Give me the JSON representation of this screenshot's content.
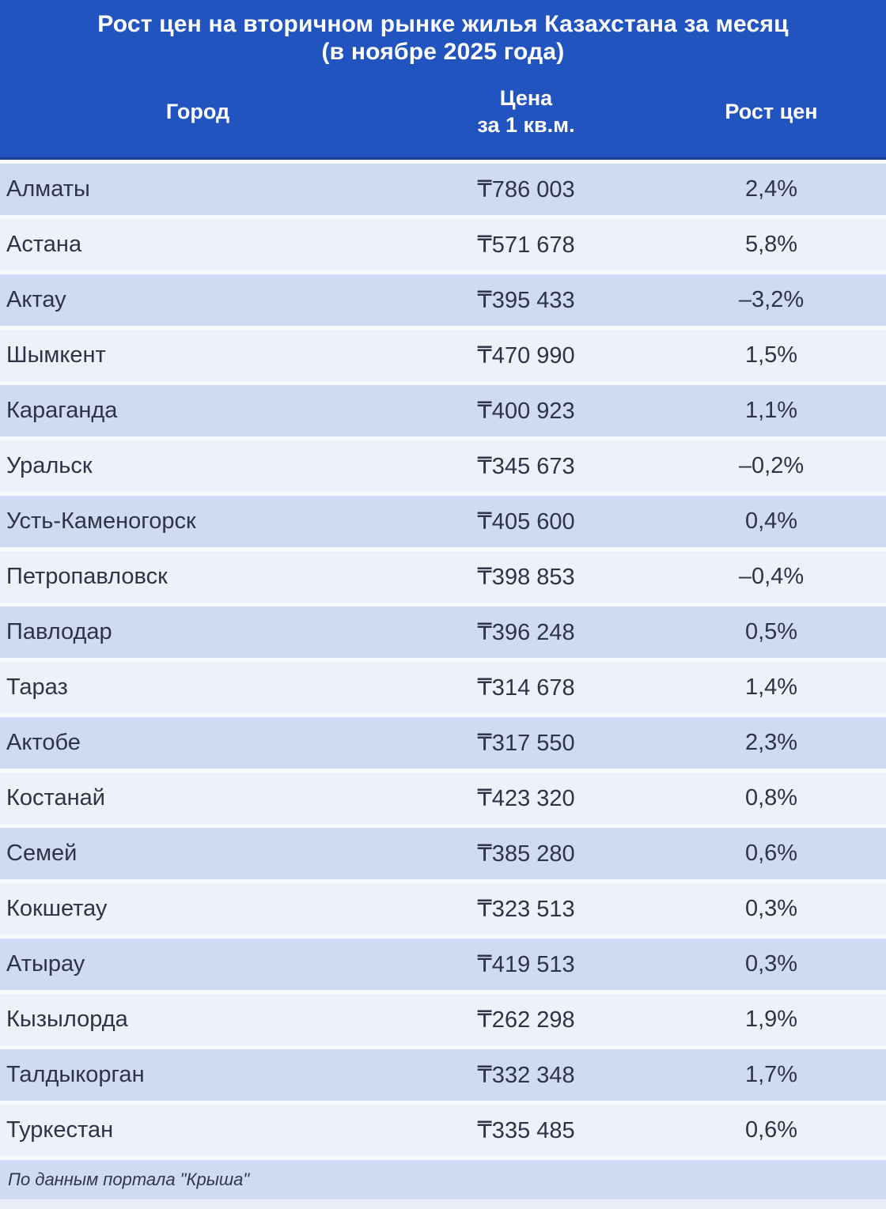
{
  "title": {
    "line1": "Рост цен на вторичном рынке жилья Казахстана за месяц",
    "line2": "(в ноябре 2025 года)"
  },
  "columns": {
    "city": "Город",
    "price_line1": "Цена",
    "price_line2": "за 1 кв.м.",
    "growth": "Рост цен"
  },
  "rows": [
    {
      "city": "Алматы",
      "price": "₸786 003",
      "growth": "2,4%"
    },
    {
      "city": "Астана",
      "price": "₸571 678",
      "growth": "5,8%"
    },
    {
      "city": "Актау",
      "price": "₸395 433",
      "growth": "–3,2%"
    },
    {
      "city": "Шымкент",
      "price": "₸470 990",
      "growth": "1,5%"
    },
    {
      "city": "Караганда",
      "price": "₸400 923",
      "growth": "1,1%"
    },
    {
      "city": "Уральск",
      "price": "₸345 673",
      "growth": "–0,2%"
    },
    {
      "city": "Усть-Каменогорск",
      "price": "₸405 600",
      "growth": "0,4%"
    },
    {
      "city": "Петропавловск",
      "price": "₸398 853",
      "growth": "–0,4%"
    },
    {
      "city": "Павлодар",
      "price": "₸396 248",
      "growth": "0,5%"
    },
    {
      "city": "Тараз",
      "price": "₸314 678",
      "growth": "1,4%"
    },
    {
      "city": "Актобе",
      "price": "₸317 550",
      "growth": "2,3%"
    },
    {
      "city": "Костанай",
      "price": "₸423 320",
      "growth": "0,8%"
    },
    {
      "city": "Семей",
      "price": "₸385 280",
      "growth": "0,6%"
    },
    {
      "city": "Кокшетау",
      "price": "₸323 513",
      "growth": "0,3%"
    },
    {
      "city": "Атырау",
      "price": "₸419 513",
      "growth": "0,3%"
    },
    {
      "city": "Кызылорда",
      "price": "₸262 298",
      "growth": "1,9%"
    },
    {
      "city": "Талдыкорган",
      "price": "₸332 348",
      "growth": "1,7%"
    },
    {
      "city": "Туркестан",
      "price": "₸335 485",
      "growth": "0,6%"
    }
  ],
  "footer": {
    "source": "По данным портала \"Крыша\""
  },
  "colors": {
    "header_bg": "#2154BE",
    "header_border": "#1C3E97",
    "row_odd": "#CFDBF3",
    "row_even": "#EDF1FA",
    "page_bg": "#F8FAFD",
    "bottom_strip": "#E9EEF9",
    "text_dark": "#303345",
    "text_white": "#FFFFFF"
  },
  "chart_data": {
    "type": "table",
    "title": "Рост цен на вторичном рынке жилья Казахстана за месяц (в ноябре 2025 года)",
    "columns": [
      "Город",
      "Цена за 1 кв.м. (₸)",
      "Рост цен (%)"
    ],
    "categories": [
      "Алматы",
      "Астана",
      "Актау",
      "Шымкент",
      "Караганда",
      "Уральск",
      "Усть-Каменогорск",
      "Петропавловск",
      "Павлодар",
      "Тараз",
      "Актобе",
      "Костанай",
      "Семей",
      "Кокшетау",
      "Атырау",
      "Кызылорда",
      "Талдыкорган",
      "Туркестан"
    ],
    "series": [
      {
        "name": "Цена за 1 кв.м., тенге",
        "values": [
          786003,
          571678,
          395433,
          470990,
          400923,
          345673,
          405600,
          398853,
          396248,
          314678,
          317550,
          423320,
          385280,
          323513,
          419513,
          262298,
          332348,
          335485
        ]
      },
      {
        "name": "Рост цен, %",
        "values": [
          2.4,
          5.8,
          -3.2,
          1.5,
          1.1,
          -0.2,
          0.4,
          -0.4,
          0.5,
          1.4,
          2.3,
          0.8,
          0.6,
          0.3,
          0.3,
          1.9,
          1.7,
          0.6
        ]
      }
    ],
    "source": "По данным портала \"Крыша\""
  }
}
